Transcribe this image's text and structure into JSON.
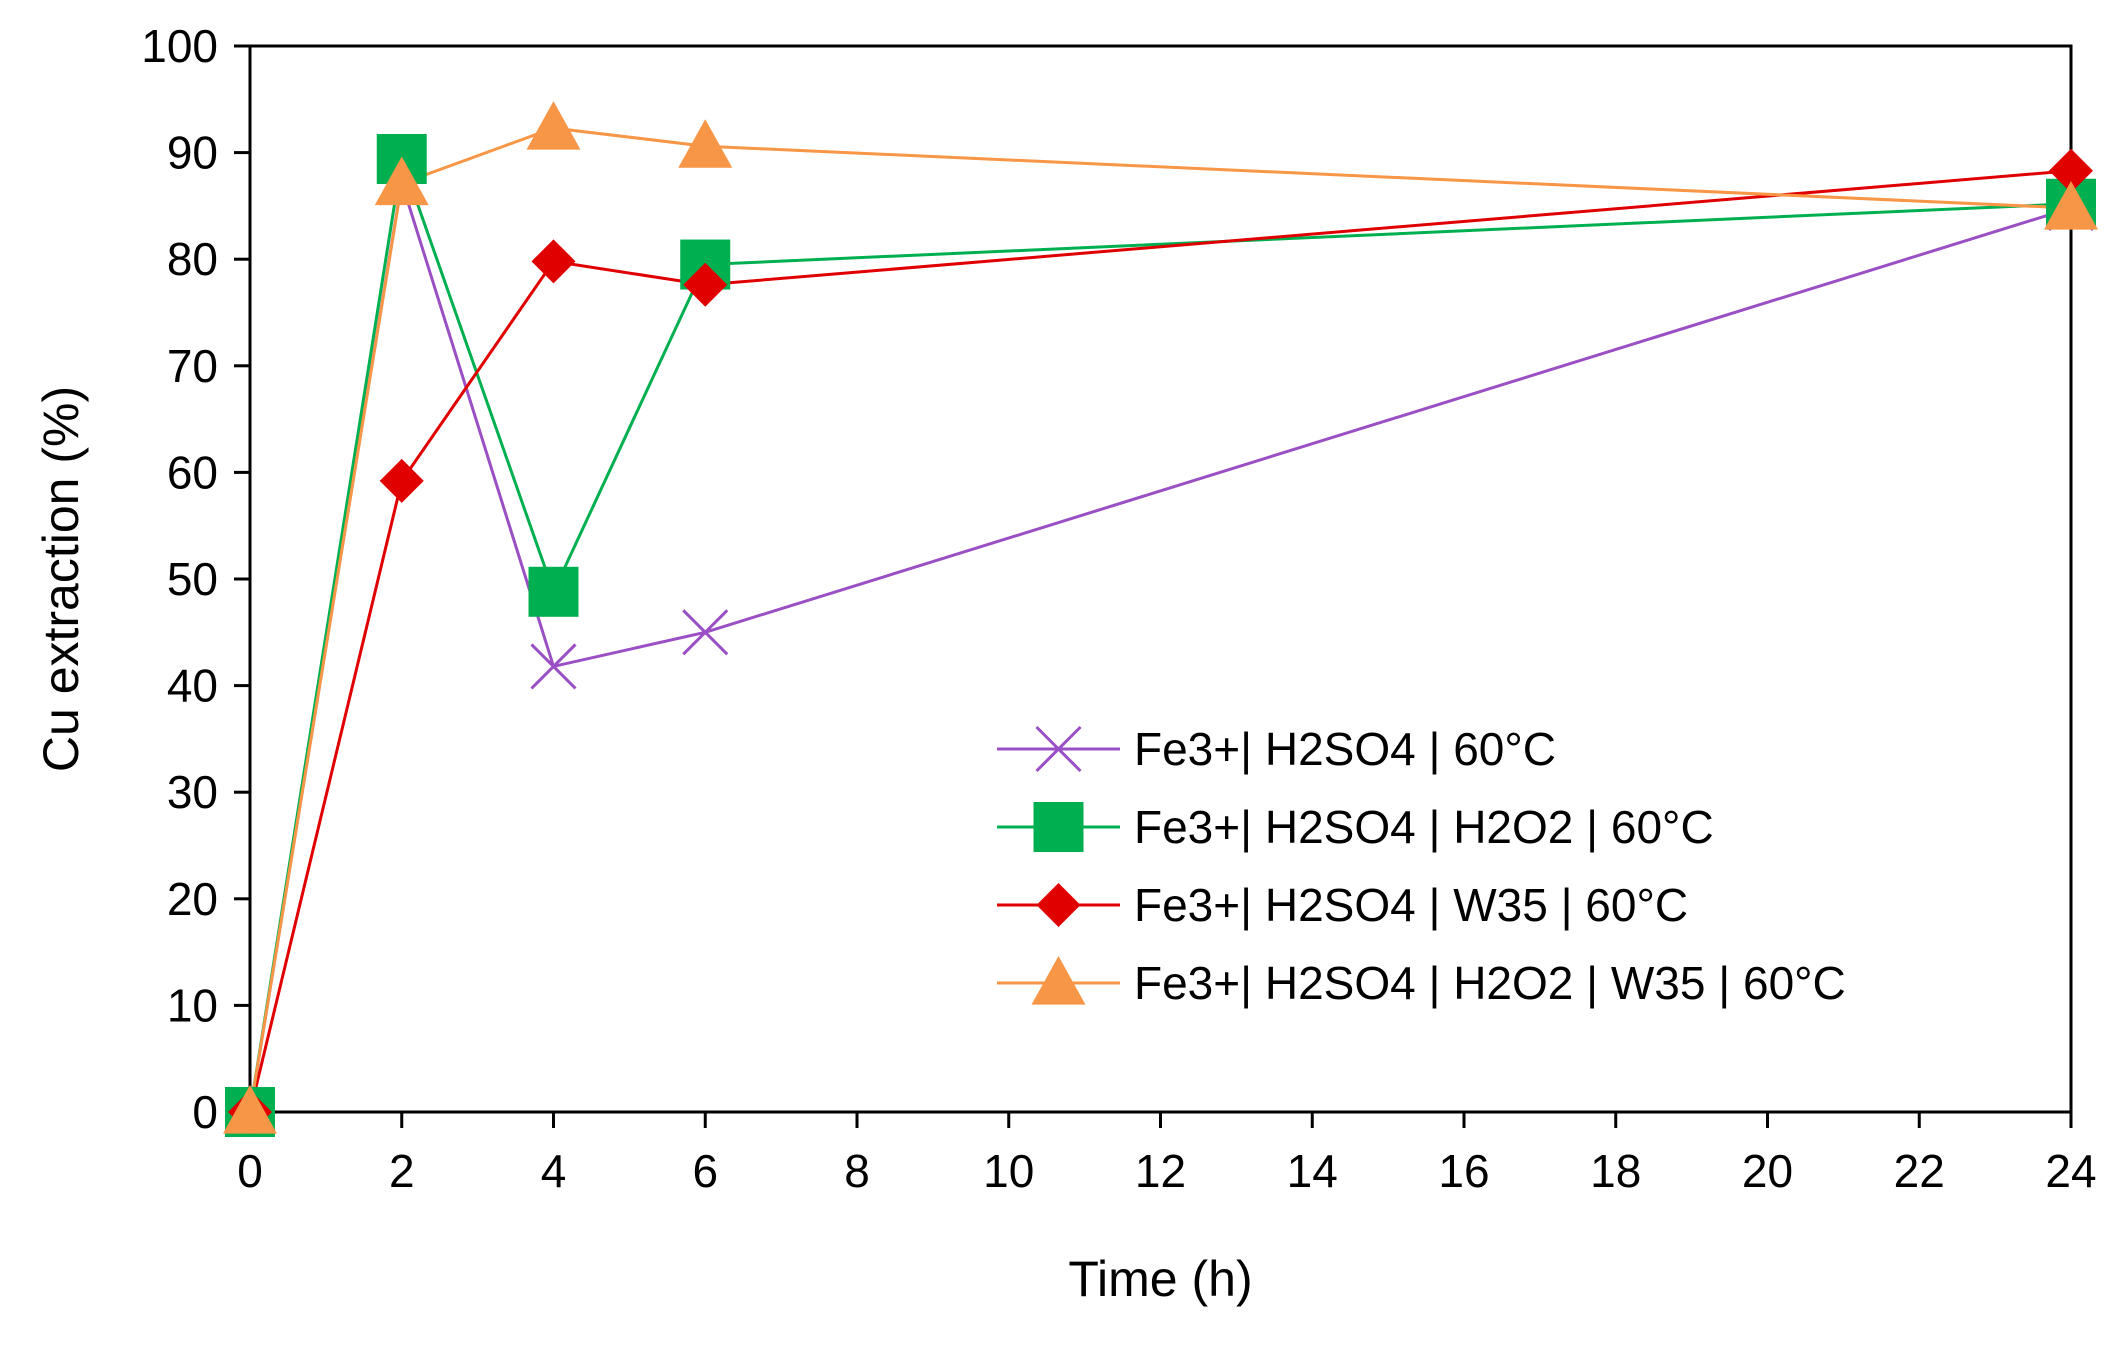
{
  "chart_data": {
    "type": "line",
    "title": "",
    "xlabel": "Time (h)",
    "ylabel": "Cu extraction (%)",
    "xlim": [
      0,
      24
    ],
    "ylim": [
      0,
      100
    ],
    "xticks": [
      0,
      2,
      4,
      6,
      8,
      10,
      12,
      14,
      16,
      18,
      20,
      22,
      24
    ],
    "yticks": [
      0,
      10,
      20,
      30,
      40,
      50,
      60,
      70,
      80,
      90,
      100
    ],
    "grid": false,
    "legend_position": "lower-right",
    "series": [
      {
        "name": "Fe3+| H2SO4 | 60°C",
        "color": "#9B4FC4",
        "marker": "x",
        "x": [
          0,
          2,
          4,
          6,
          24
        ],
        "y": [
          0,
          87.2,
          41.8,
          45.0,
          84.8
        ]
      },
      {
        "name": "Fe3+| H2SO4 | H2O2 | 60°C",
        "color": "#00B050",
        "marker": "square",
        "x": [
          0,
          2,
          4,
          6,
          24
        ],
        "y": [
          0,
          89.4,
          48.8,
          79.5,
          85.2
        ]
      },
      {
        "name": "Fe3+| H2SO4 | W35 | 60°C",
        "color": "#E00000",
        "marker": "diamond",
        "x": [
          0,
          2,
          4,
          6,
          24
        ],
        "y": [
          0,
          59.2,
          79.8,
          77.6,
          88.3
        ]
      },
      {
        "name": "Fe3+| H2SO4 | H2O2 | W35 | 60°C",
        "color": "#F79646",
        "marker": "triangle",
        "x": [
          0,
          2,
          4,
          6,
          24
        ],
        "y": [
          0,
          87.1,
          92.3,
          90.6,
          84.8
        ]
      }
    ]
  }
}
